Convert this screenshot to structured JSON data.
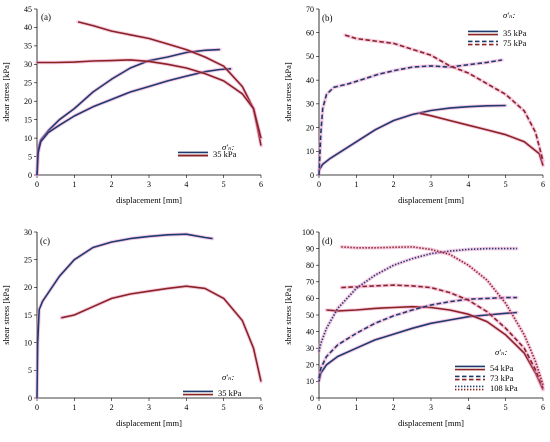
{
  "colors": {
    "blue": "#1f3a6e",
    "red": "#8b2323",
    "pink": "#e98fc3",
    "grey": "#9a9a9a"
  },
  "chart_data": [
    {
      "type": "line",
      "panel_label": "(a)",
      "xlabel": "displacement [mm]",
      "ylabel": "shear stress [kPa]",
      "xlim": [
        0,
        6
      ],
      "ylim": [
        0,
        45
      ],
      "xticks": [
        "0",
        "1",
        "2",
        "3",
        "4",
        "5",
        "6"
      ],
      "yticks": [
        "0",
        "5",
        "10",
        "15",
        "20",
        "25",
        "30",
        "35",
        "40",
        "45"
      ],
      "legend_title": "σ'ₙ:",
      "legend_placement": "bottom-right",
      "series": [
        {
          "name": "35 kPa",
          "color": "blue",
          "dash": "solid",
          "points": [
            [
              0,
              0
            ],
            [
              0.03,
              7
            ],
            [
              0.1,
              9.5
            ],
            [
              0.3,
              12
            ],
            [
              0.6,
              15
            ],
            [
              1,
              18
            ],
            [
              1.5,
              22.5
            ],
            [
              2,
              26
            ],
            [
              2.5,
              29
            ],
            [
              3,
              31
            ],
            [
              3.5,
              32
            ],
            [
              4,
              33.2
            ],
            [
              4.5,
              33.8
            ],
            [
              4.9,
              34
            ]
          ]
        },
        {
          "name": "35 kPa",
          "color": "blue",
          "dash": "solid",
          "points": [
            [
              0,
              0
            ],
            [
              0.03,
              6
            ],
            [
              0.1,
              9
            ],
            [
              0.3,
              11.5
            ],
            [
              0.6,
              13.5
            ],
            [
              1,
              16
            ],
            [
              1.5,
              18.5
            ],
            [
              2,
              20.5
            ],
            [
              2.5,
              22.5
            ],
            [
              3,
              24
            ],
            [
              3.5,
              25.5
            ],
            [
              4,
              26.8
            ],
            [
              4.5,
              28
            ],
            [
              4.9,
              28.6
            ],
            [
              5.2,
              28.8
            ]
          ]
        },
        {
          "name": "35 kPa",
          "color": "red",
          "dash": "solid",
          "legend": true,
          "points": [
            [
              1.1,
              41.5
            ],
            [
              1.5,
              40.5
            ],
            [
              2,
              39
            ],
            [
              2.5,
              38
            ],
            [
              3,
              37
            ],
            [
              3.5,
              35.5
            ],
            [
              4,
              34
            ],
            [
              4.5,
              32
            ],
            [
              5,
              29.5
            ],
            [
              5.5,
              24
            ],
            [
              5.8,
              18
            ],
            [
              6,
              8
            ]
          ]
        },
        {
          "name": "35 kPa",
          "color": "red",
          "dash": "solid",
          "points": [
            [
              0,
              30.5
            ],
            [
              0.5,
              30.5
            ],
            [
              1,
              30.6
            ],
            [
              1.5,
              30.9
            ],
            [
              2,
              31
            ],
            [
              2.5,
              31.2
            ],
            [
              3,
              30.8
            ],
            [
              3.5,
              30
            ],
            [
              4,
              29
            ],
            [
              4.5,
              27.5
            ],
            [
              5,
              25.5
            ],
            [
              5.5,
              22
            ],
            [
              5.8,
              18
            ],
            [
              6,
              10
            ]
          ]
        }
      ]
    },
    {
      "type": "line",
      "panel_label": "(b)",
      "xlabel": "displacement [mm]",
      "ylabel": "shear stress [kPa]",
      "xlim": [
        0,
        6
      ],
      "ylim": [
        0,
        70
      ],
      "xticks": [
        "0",
        "1",
        "2",
        "3",
        "4",
        "5",
        "6"
      ],
      "yticks": [
        "0",
        "10",
        "20",
        "30",
        "40",
        "50",
        "60",
        "70"
      ],
      "legend_title": "σ'ₙ:",
      "legend_placement": "top-right",
      "series": [
        {
          "name": "35 kPa",
          "color": "blue",
          "dash": "solid",
          "legend": true,
          "points": [
            [
              0,
              2
            ],
            [
              0.1,
              4.5
            ],
            [
              0.3,
              7
            ],
            [
              0.6,
              10
            ],
            [
              1,
              14
            ],
            [
              1.5,
              19
            ],
            [
              2,
              23
            ],
            [
              2.5,
              25.5
            ],
            [
              3,
              27.2
            ],
            [
              3.5,
              28.2
            ],
            [
              4,
              28.8
            ],
            [
              4.5,
              29.2
            ],
            [
              5,
              29.3
            ]
          ]
        },
        {
          "name": "35 kPa",
          "color": "red",
          "dash": "solid",
          "points": [
            [
              2.7,
              26
            ],
            [
              3,
              25
            ],
            [
              3.5,
              23
            ],
            [
              4,
              21
            ],
            [
              4.5,
              19
            ],
            [
              5,
              17
            ],
            [
              5.5,
              14
            ],
            [
              5.9,
              9
            ],
            [
              6,
              4
            ]
          ]
        },
        {
          "name": "75 kPa",
          "color": "blue",
          "dash": "dashed",
          "points": [
            [
              0,
              0
            ],
            [
              0.05,
              18
            ],
            [
              0.1,
              28
            ],
            [
              0.2,
              34
            ],
            [
              0.4,
              37
            ],
            [
              0.8,
              38.5
            ],
            [
              1.2,
              40.5
            ],
            [
              1.6,
              42.5
            ],
            [
              2,
              44
            ],
            [
              2.5,
              45.5
            ],
            [
              3,
              46
            ],
            [
              3.5,
              45.5
            ],
            [
              4,
              46.5
            ],
            [
              4.5,
              47.5
            ],
            [
              4.9,
              48.5
            ]
          ]
        },
        {
          "name": "75 kPa",
          "color": "red",
          "dash": "dashed",
          "legend": true,
          "points": [
            [
              0.7,
              59
            ],
            [
              1,
              57.5
            ],
            [
              1.5,
              56.5
            ],
            [
              2,
              55.5
            ],
            [
              2.5,
              53
            ],
            [
              3,
              50.5
            ],
            [
              3.5,
              46
            ],
            [
              4,
              43
            ],
            [
              4.5,
              38.5
            ],
            [
              5,
              34
            ],
            [
              5.5,
              27
            ],
            [
              5.8,
              18
            ],
            [
              6,
              6
            ]
          ]
        }
      ]
    },
    {
      "type": "line",
      "panel_label": "(c)",
      "xlabel": "displacement [mm]",
      "ylabel": "shear stress [kPa]",
      "xlim": [
        0,
        6
      ],
      "ylim": [
        0,
        30
      ],
      "xticks": [
        "0",
        "1",
        "2",
        "3",
        "4",
        "5",
        "6"
      ],
      "yticks": [
        "0",
        "5",
        "10",
        "15",
        "20",
        "25",
        "30"
      ],
      "legend_title": "σ'ₙ:",
      "legend_placement": "bottom-right",
      "series": [
        {
          "name": "35 kPa",
          "color": "blue",
          "dash": "solid",
          "legend": true,
          "points": [
            [
              0,
              0
            ],
            [
              0.02,
              10
            ],
            [
              0.06,
              16
            ],
            [
              0.15,
              17.5
            ],
            [
              0.3,
              19
            ],
            [
              0.6,
              22
            ],
            [
              1,
              25
            ],
            [
              1.5,
              27.2
            ],
            [
              2,
              28.2
            ],
            [
              2.5,
              28.8
            ],
            [
              3,
              29.2
            ],
            [
              3.5,
              29.5
            ],
            [
              4,
              29.6
            ],
            [
              4.5,
              29
            ],
            [
              4.7,
              28.8
            ]
          ]
        },
        {
          "name": "35 kPa",
          "color": "red",
          "dash": "solid",
          "points": [
            [
              0.65,
              14.5
            ],
            [
              1,
              15
            ],
            [
              1.5,
              16.5
            ],
            [
              2,
              18
            ],
            [
              2.5,
              18.8
            ],
            [
              3,
              19.3
            ],
            [
              3.5,
              19.8
            ],
            [
              4,
              20.2
            ],
            [
              4.5,
              19.8
            ],
            [
              5,
              18
            ],
            [
              5.5,
              14
            ],
            [
              5.8,
              9
            ],
            [
              6,
              3
            ]
          ]
        }
      ]
    },
    {
      "type": "line",
      "panel_label": "(d)",
      "xlabel": "displacement [mm]",
      "ylabel": "shear stress [kPa]",
      "xlim": [
        0,
        6
      ],
      "ylim": [
        0,
        100
      ],
      "xticks": [
        "0",
        "1",
        "2",
        "3",
        "4",
        "5",
        "6"
      ],
      "yticks": [
        "0",
        "10",
        "20",
        "30",
        "40",
        "50",
        "60",
        "70",
        "80",
        "90",
        "100"
      ],
      "legend_title": "σ'ₙ:",
      "legend_placement": "bottom-right",
      "series": [
        {
          "name": "54 kPa",
          "color": "blue",
          "dash": "solid",
          "points": [
            [
              0,
              10
            ],
            [
              0.05,
              15
            ],
            [
              0.2,
              20
            ],
            [
              0.5,
              25
            ],
            [
              1,
              30
            ],
            [
              1.5,
              35
            ],
            [
              2,
              38.5
            ],
            [
              2.5,
              42
            ],
            [
              3,
              45
            ],
            [
              3.5,
              47
            ],
            [
              4,
              49
            ],
            [
              4.5,
              50
            ],
            [
              5,
              51
            ],
            [
              5.3,
              51.5
            ]
          ]
        },
        {
          "name": "54 kPa",
          "color": "red",
          "dash": "solid",
          "legend": true,
          "points": [
            [
              0.2,
              53
            ],
            [
              0.5,
              52.5
            ],
            [
              1,
              53
            ],
            [
              1.5,
              54
            ],
            [
              2,
              54.5
            ],
            [
              2.5,
              55
            ],
            [
              3,
              54.5
            ],
            [
              3.5,
              53
            ],
            [
              4,
              50.5
            ],
            [
              4.5,
              46
            ],
            [
              5,
              38
            ],
            [
              5.5,
              27
            ],
            [
              5.8,
              15
            ],
            [
              6,
              5
            ]
          ]
        },
        {
          "name": "73 kPa",
          "color": "blue",
          "dash": "dashed",
          "points": [
            [
              0,
              12
            ],
            [
              0.05,
              18
            ],
            [
              0.2,
              25
            ],
            [
              0.5,
              32
            ],
            [
              1,
              39
            ],
            [
              1.5,
              45
            ],
            [
              2,
              49.5
            ],
            [
              2.5,
              53
            ],
            [
              3,
              56
            ],
            [
              3.5,
              58
            ],
            [
              4,
              59.5
            ],
            [
              4.5,
              60
            ],
            [
              5,
              60.5
            ],
            [
              5.3,
              60.5
            ]
          ]
        },
        {
          "name": "73 kPa",
          "color": "red",
          "dash": "dashed",
          "legend": true,
          "points": [
            [
              0.6,
              66.5
            ],
            [
              1,
              67
            ],
            [
              1.5,
              67.5
            ],
            [
              2,
              68
            ],
            [
              2.5,
              67.5
            ],
            [
              3,
              66.5
            ],
            [
              3.5,
              63.5
            ],
            [
              4,
              59
            ],
            [
              4.5,
              52
            ],
            [
              5,
              42
            ],
            [
              5.5,
              30
            ],
            [
              5.8,
              17
            ],
            [
              6,
              6
            ]
          ]
        },
        {
          "name": "108 kPa",
          "color": "blue",
          "dash": "dotted",
          "points": [
            [
              0,
              28
            ],
            [
              0.05,
              33
            ],
            [
              0.2,
              42
            ],
            [
              0.5,
              54
            ],
            [
              1,
              66
            ],
            [
              1.5,
              74
            ],
            [
              2,
              80
            ],
            [
              2.5,
              84
            ],
            [
              3,
              87
            ],
            [
              3.5,
              88.5
            ],
            [
              4,
              89.5
            ],
            [
              4.5,
              90
            ],
            [
              5,
              90
            ],
            [
              5.3,
              90
            ]
          ]
        },
        {
          "name": "108 kPa",
          "color": "red",
          "dash": "dotted",
          "legend": true,
          "points": [
            [
              0.6,
              91
            ],
            [
              1,
              90.5
            ],
            [
              1.5,
              90.5
            ],
            [
              2,
              90.8
            ],
            [
              2.5,
              91
            ],
            [
              3,
              89.5
            ],
            [
              3.5,
              86.5
            ],
            [
              4,
              80
            ],
            [
              4.5,
              71
            ],
            [
              5,
              57
            ],
            [
              5.5,
              38
            ],
            [
              5.8,
              22
            ],
            [
              6,
              8
            ]
          ]
        }
      ]
    }
  ]
}
